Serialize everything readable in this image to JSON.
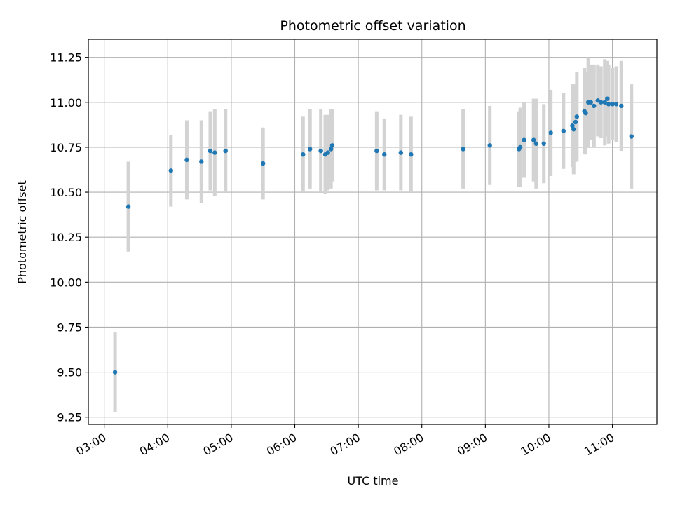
{
  "chart_data": {
    "type": "scatter",
    "title": "Photometric offset variation",
    "xlabel": "UTC time",
    "ylabel": "Photometric offset",
    "x_unit": "hours UTC",
    "xlim": [
      2.75,
      11.7
    ],
    "ylim": [
      9.21,
      11.35
    ],
    "x_ticks": [
      3,
      4,
      5,
      6,
      7,
      8,
      9,
      10,
      11
    ],
    "x_tick_labels": [
      "03:00",
      "04:00",
      "05:00",
      "06:00",
      "07:00",
      "08:00",
      "09:00",
      "10:00",
      "11:00"
    ],
    "y_ticks": [
      9.25,
      9.5,
      9.75,
      10.0,
      10.25,
      10.5,
      10.75,
      11.0,
      11.25
    ],
    "y_tick_labels": [
      "9.25",
      "9.50",
      "9.75",
      "10.00",
      "10.25",
      "10.50",
      "10.75",
      "11.00",
      "11.25"
    ],
    "grid": true,
    "colors": {
      "points": "#1f77b4",
      "error_bars": "#d3d3d3",
      "grid": "#b0b0b0"
    },
    "series": [
      {
        "x": [
          3.17,
          3.38,
          4.05,
          4.3,
          4.53,
          4.67,
          4.74,
          4.91,
          5.5,
          6.13,
          6.24,
          6.41,
          6.48,
          6.52,
          6.57,
          6.59,
          7.29,
          7.41,
          7.67,
          7.83,
          8.65,
          9.07,
          9.53,
          9.55,
          9.61,
          9.76,
          9.8,
          9.92,
          10.03,
          10.23,
          10.37,
          10.39,
          10.42,
          10.44,
          10.56,
          10.58,
          10.62,
          10.66,
          10.71,
          10.77,
          10.82,
          10.88,
          10.92,
          10.94,
          11.0,
          11.06,
          11.14,
          11.3
        ],
        "y": [
          9.5,
          10.42,
          10.62,
          10.68,
          10.67,
          10.73,
          10.72,
          10.73,
          10.66,
          10.71,
          10.74,
          10.73,
          10.71,
          10.72,
          10.74,
          10.76,
          10.73,
          10.71,
          10.72,
          10.71,
          10.74,
          10.76,
          10.74,
          10.75,
          10.79,
          10.79,
          10.77,
          10.77,
          10.83,
          10.84,
          10.87,
          10.85,
          10.89,
          10.92,
          10.95,
          10.94,
          11.0,
          11.0,
          10.98,
          11.01,
          11.0,
          11.0,
          11.02,
          10.99,
          10.99,
          10.99,
          10.98,
          10.81
        ],
        "yerr": [
          0.22,
          0.25,
          0.2,
          0.22,
          0.23,
          0.22,
          0.24,
          0.23,
          0.2,
          0.21,
          0.22,
          0.23,
          0.22,
          0.21,
          0.22,
          0.2,
          0.22,
          0.2,
          0.21,
          0.21,
          0.22,
          0.22,
          0.21,
          0.22,
          0.21,
          0.23,
          0.25,
          0.22,
          0.24,
          0.21,
          0.23,
          0.25,
          0.2,
          0.25,
          0.24,
          0.23,
          0.25,
          0.21,
          0.23,
          0.2,
          0.2,
          0.24,
          0.21,
          0.22,
          0.2,
          0.21,
          0.25,
          0.29
        ]
      }
    ]
  }
}
